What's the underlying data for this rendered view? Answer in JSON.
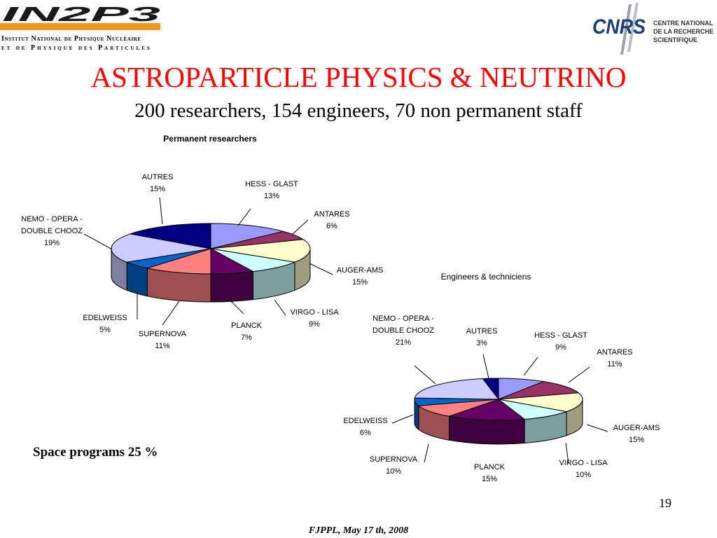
{
  "header": {
    "org_wordmark": "IN2P3",
    "institute_line1": "Institut National de Physique Nucléaire",
    "institute_line2": "et de Physique des Particules",
    "cnrs_mark": "CNRS",
    "cnrs_line1": "CENTRE NATIONAL",
    "cnrs_line2": "DE LA RECHERCHE",
    "cnrs_line3": "SCIENTIFIQUE",
    "accent_color": "#f7941d"
  },
  "slide": {
    "title": "ASTROPARTICLE PHYSICS & NEUTRINO",
    "subtitle": "200 researchers, 154 engineers, 70 non permanent staff",
    "note": "Space programs 25 %",
    "page_number": "19",
    "footer": "FJPPL, May 17 th, 2008",
    "title_color": "#ff0000"
  },
  "chart_data": [
    {
      "type": "pie",
      "title": "Permanent researchers",
      "style": "3d",
      "slices": [
        {
          "label": "HESS - GLAST",
          "value": 13,
          "display": "13%",
          "color": "#9999ff"
        },
        {
          "label": "ANTARES",
          "value": 6,
          "display": "6%",
          "color": "#993366"
        },
        {
          "label": "AUGER-AMS",
          "value": 15,
          "display": "15%",
          "color": "#ffffcc"
        },
        {
          "label": "VIRGO - LISA",
          "value": 9,
          "display": "9%",
          "color": "#ccffff"
        },
        {
          "label": "PLANCK",
          "value": 7,
          "display": "7%",
          "color": "#660066"
        },
        {
          "label": "SUPERNOVA",
          "value": 11,
          "display": "11%",
          "color": "#ff8080"
        },
        {
          "label": "EDELWEISS",
          "value": 5,
          "display": "5%",
          "color": "#0066cc"
        },
        {
          "label": "NEMO - OPERA -\nDOUBLE CHOOZ",
          "value": 19,
          "display": "19%",
          "color": "#ccccff"
        },
        {
          "label": "AUTRES",
          "value": 15,
          "display": "15%",
          "color": "#000080"
        }
      ]
    },
    {
      "type": "pie",
      "title": "Engineers & techniciens",
      "style": "3d",
      "slices": [
        {
          "label": "HESS - GLAST",
          "value": 9,
          "display": "9%",
          "color": "#9999ff"
        },
        {
          "label": "ANTARES",
          "value": 11,
          "display": "11%",
          "color": "#993366"
        },
        {
          "label": "AUGER-AMS",
          "value": 15,
          "display": "15%",
          "color": "#ffffcc"
        },
        {
          "label": "VIRGO - LISA",
          "value": 10,
          "display": "10%",
          "color": "#ccffff"
        },
        {
          "label": "PLANCK",
          "value": 15,
          "display": "15%",
          "color": "#660066"
        },
        {
          "label": "SUPERNOVA",
          "value": 10,
          "display": "10%",
          "color": "#ff8080"
        },
        {
          "label": "EDELWEISS",
          "value": 6,
          "display": "6%",
          "color": "#0066cc"
        },
        {
          "label": "NEMO - OPERA -\nDOUBLE CHOOZ",
          "value": 21,
          "display": "21%",
          "color": "#ccccff"
        },
        {
          "label": "AUTRES",
          "value": 3,
          "display": "3%",
          "color": "#000080"
        }
      ]
    }
  ]
}
